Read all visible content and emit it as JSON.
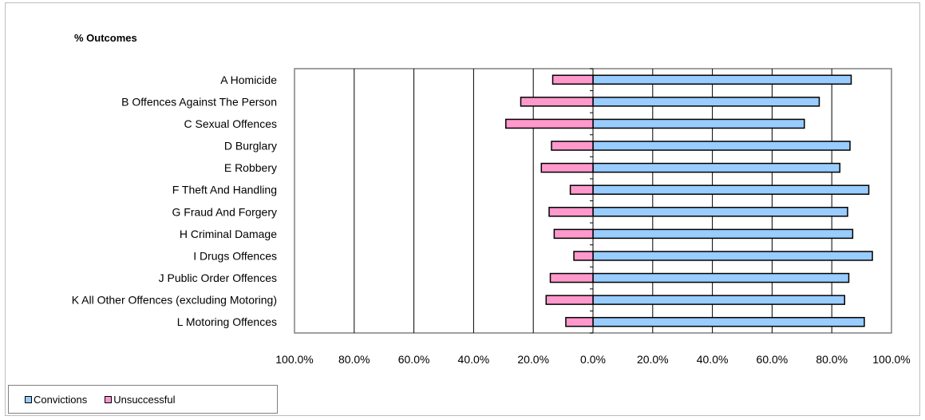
{
  "chart_data": {
    "type": "bar",
    "orientation": "horizontal",
    "title": "% Outcomes",
    "categories": [
      "A Homicide",
      "B Offences Against The Person",
      "C Sexual Offences",
      "D Burglary",
      "E Robbery",
      "F Theft And Handling",
      "G Fraud And Forgery",
      "H Criminal Damage",
      "I Drugs Offences",
      "J Public Order Offences",
      "K All Other Offences (excluding Motoring)",
      "L Motoring Offences"
    ],
    "series": [
      {
        "name": "Convictions",
        "color": "#99ccff",
        "values": [
          86.5,
          75.8,
          70.8,
          86.1,
          82.7,
          92.4,
          85.3,
          87.0,
          93.6,
          85.7,
          84.3,
          90.9
        ]
      },
      {
        "name": "Unsuccessful",
        "color": "#ff99cc",
        "values": [
          -13.5,
          -24.2,
          -29.2,
          -13.9,
          -17.3,
          -7.6,
          -14.7,
          -13.0,
          -6.4,
          -14.3,
          -15.7,
          -9.1
        ]
      }
    ],
    "xlim": [
      -100,
      100
    ],
    "x_ticks": [
      "100.0%",
      "80.0%",
      "60.0%",
      "40.0%",
      "20.0%",
      "0.0%",
      "20.0%",
      "40.0%",
      "60.0%",
      "80.0%",
      "100.0%"
    ],
    "grid": "vertical",
    "legend_position": "bottom-left"
  }
}
